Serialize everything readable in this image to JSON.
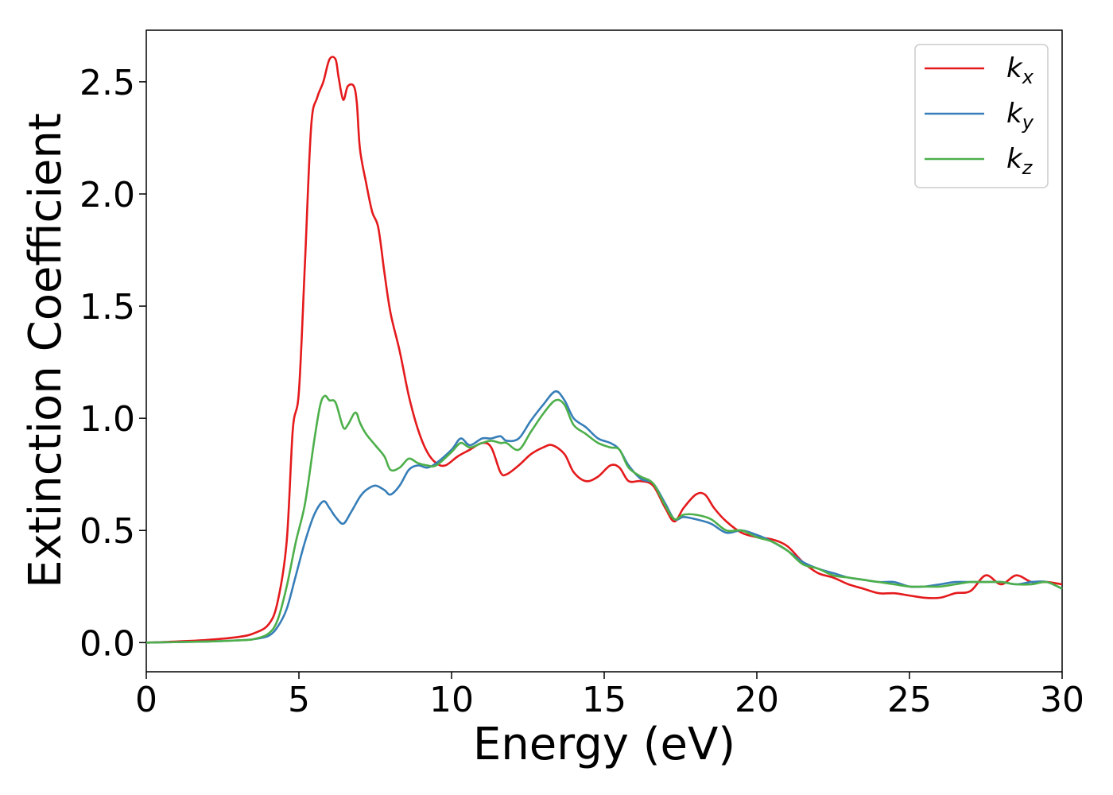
{
  "chart_data": {
    "type": "line",
    "xlabel": "Energy (eV)",
    "ylabel": "Extinction Coefficient",
    "xlim": [
      0,
      30
    ],
    "ylim": [
      -0.13,
      2.73
    ],
    "xticks": [
      0,
      5,
      10,
      15,
      20,
      25,
      30
    ],
    "xtick_labels": [
      "0",
      "5",
      "10",
      "15",
      "20",
      "25",
      "30"
    ],
    "yticks": [
      0.0,
      0.5,
      1.0,
      1.5,
      2.0,
      2.5
    ],
    "ytick_labels": [
      "0.0",
      "0.5",
      "1.0",
      "1.5",
      "2.0",
      "2.5"
    ],
    "grid": false,
    "legend_position": "top-right",
    "series": [
      {
        "name": "k_x",
        "label_main": "k",
        "label_sub": "x",
        "color": "#e41a1c",
        "x": [
          0,
          1,
          2,
          3,
          3.5,
          4,
          4.3,
          4.6,
          4.8,
          5.0,
          5.2,
          5.4,
          5.6,
          5.8,
          6.0,
          6.2,
          6.3,
          6.45,
          6.6,
          6.8,
          6.9,
          7.0,
          7.2,
          7.4,
          7.6,
          7.8,
          8.0,
          8.3,
          8.6,
          8.9,
          9.2,
          9.5,
          9.8,
          10.2,
          10.6,
          11.0,
          11.3,
          11.6,
          11.8,
          12.2,
          12.6,
          13.0,
          13.3,
          13.7,
          14.0,
          14.4,
          14.8,
          15.2,
          15.5,
          15.8,
          16.2,
          16.6,
          17.0,
          17.3,
          17.6,
          18.0,
          18.3,
          18.6,
          19.0,
          19.5,
          20.0,
          20.5,
          21.0,
          21.5,
          22.0,
          22.5,
          23.0,
          23.5,
          24.0,
          24.5,
          25.0,
          25.5,
          26.0,
          26.5,
          27.0,
          27.5,
          28.0,
          28.5,
          29.0,
          29.5,
          30.0
        ],
        "y": [
          0.0,
          0.005,
          0.012,
          0.025,
          0.04,
          0.08,
          0.18,
          0.45,
          0.95,
          1.12,
          1.7,
          2.3,
          2.43,
          2.5,
          2.6,
          2.6,
          2.52,
          2.42,
          2.48,
          2.48,
          2.4,
          2.2,
          2.05,
          1.92,
          1.85,
          1.65,
          1.47,
          1.3,
          1.1,
          0.95,
          0.85,
          0.8,
          0.79,
          0.83,
          0.86,
          0.89,
          0.87,
          0.76,
          0.75,
          0.79,
          0.84,
          0.87,
          0.88,
          0.84,
          0.76,
          0.72,
          0.74,
          0.79,
          0.78,
          0.72,
          0.72,
          0.7,
          0.6,
          0.54,
          0.6,
          0.66,
          0.66,
          0.6,
          0.54,
          0.49,
          0.47,
          0.46,
          0.43,
          0.36,
          0.31,
          0.29,
          0.26,
          0.24,
          0.22,
          0.22,
          0.21,
          0.2,
          0.2,
          0.22,
          0.23,
          0.3,
          0.26,
          0.3,
          0.27,
          0.27,
          0.26
        ]
      },
      {
        "name": "k_y",
        "label_main": "k",
        "label_sub": "y",
        "color": "#377eb8",
        "x": [
          0,
          2,
          3,
          3.5,
          4,
          4.3,
          4.6,
          4.9,
          5.2,
          5.5,
          5.8,
          6.0,
          6.2,
          6.45,
          6.7,
          7.0,
          7.2,
          7.5,
          7.8,
          8.0,
          8.3,
          8.6,
          8.9,
          9.2,
          9.5,
          10.0,
          10.3,
          10.6,
          11.0,
          11.3,
          11.6,
          11.8,
          12.2,
          12.6,
          13.0,
          13.4,
          13.7,
          14.0,
          14.4,
          14.8,
          15.2,
          15.5,
          15.8,
          16.2,
          16.6,
          17.0,
          17.3,
          17.6,
          18.0,
          18.5,
          19.0,
          19.5,
          20.0,
          20.5,
          21.0,
          21.5,
          22.0,
          22.5,
          23.0,
          23.5,
          24.0,
          24.5,
          25.0,
          25.5,
          26.0,
          26.5,
          27.0,
          27.5,
          28.0,
          28.5,
          29.0,
          29.5,
          30.0
        ],
        "y": [
          0.0,
          0.005,
          0.01,
          0.015,
          0.03,
          0.07,
          0.15,
          0.3,
          0.45,
          0.57,
          0.63,
          0.6,
          0.56,
          0.53,
          0.58,
          0.65,
          0.68,
          0.7,
          0.68,
          0.66,
          0.7,
          0.77,
          0.79,
          0.78,
          0.8,
          0.86,
          0.91,
          0.88,
          0.91,
          0.91,
          0.92,
          0.9,
          0.91,
          0.99,
          1.06,
          1.12,
          1.08,
          1.0,
          0.96,
          0.91,
          0.89,
          0.86,
          0.79,
          0.73,
          0.71,
          0.62,
          0.55,
          0.56,
          0.55,
          0.53,
          0.49,
          0.5,
          0.48,
          0.45,
          0.41,
          0.36,
          0.33,
          0.31,
          0.29,
          0.28,
          0.27,
          0.27,
          0.25,
          0.25,
          0.26,
          0.27,
          0.27,
          0.27,
          0.27,
          0.26,
          0.27,
          0.27,
          0.24
        ]
      },
      {
        "name": "k_z",
        "label_main": "k",
        "label_sub": "z",
        "color": "#4daf4a",
        "x": [
          0,
          2,
          3,
          3.5,
          4,
          4.3,
          4.6,
          4.9,
          5.2,
          5.5,
          5.7,
          5.85,
          6.0,
          6.2,
          6.45,
          6.6,
          6.8,
          6.9,
          7.0,
          7.2,
          7.5,
          7.8,
          8.0,
          8.3,
          8.6,
          8.9,
          9.2,
          9.5,
          10.0,
          10.3,
          10.6,
          11.0,
          11.3,
          11.6,
          11.8,
          12.2,
          12.6,
          13.0,
          13.4,
          13.7,
          14.0,
          14.4,
          14.8,
          15.2,
          15.5,
          15.8,
          16.2,
          16.6,
          17.0,
          17.3,
          17.6,
          18.0,
          18.5,
          19.0,
          19.5,
          20.0,
          20.5,
          21.0,
          21.5,
          22.0,
          22.5,
          23.0,
          23.5,
          24.0,
          24.5,
          25.0,
          25.5,
          26.0,
          26.5,
          27.0,
          27.5,
          28.0,
          28.5,
          29.0,
          29.5,
          30.0
        ],
        "y": [
          0.0,
          0.005,
          0.01,
          0.015,
          0.04,
          0.1,
          0.25,
          0.45,
          0.62,
          0.9,
          1.06,
          1.1,
          1.08,
          1.07,
          0.96,
          0.97,
          1.02,
          1.02,
          0.98,
          0.93,
          0.88,
          0.83,
          0.77,
          0.78,
          0.82,
          0.8,
          0.79,
          0.79,
          0.85,
          0.89,
          0.87,
          0.89,
          0.9,
          0.89,
          0.89,
          0.86,
          0.94,
          1.02,
          1.08,
          1.06,
          0.97,
          0.93,
          0.89,
          0.87,
          0.86,
          0.78,
          0.74,
          0.71,
          0.61,
          0.55,
          0.57,
          0.57,
          0.55,
          0.5,
          0.5,
          0.47,
          0.45,
          0.41,
          0.35,
          0.33,
          0.3,
          0.29,
          0.28,
          0.27,
          0.26,
          0.25,
          0.25,
          0.25,
          0.26,
          0.27,
          0.27,
          0.27,
          0.26,
          0.26,
          0.27,
          0.24
        ]
      }
    ]
  }
}
